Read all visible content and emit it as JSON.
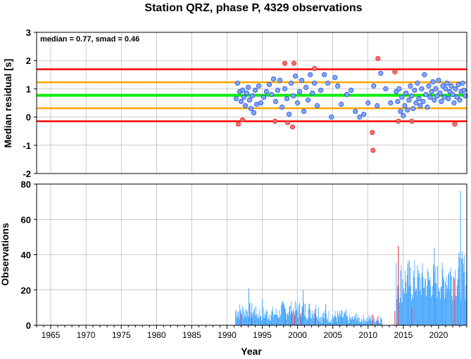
{
  "chart_data": [
    {
      "type": "scatter",
      "title": "Station QRZ, phase P, 4329 observations",
      "annotation": "median = 0.77, smad = 0.46",
      "ylabel": "Median residual [s]",
      "xlim": [
        1963,
        2024
      ],
      "ylim": [
        -2,
        3
      ],
      "yticks": [
        -2,
        -1,
        0,
        1,
        2,
        3
      ],
      "grid": true,
      "reference_lines": [
        {
          "y": 0.77,
          "color": "#00ee00"
        },
        {
          "y": 1.23,
          "color": "#ffa500"
        },
        {
          "y": 0.31,
          "color": "#ffa500"
        },
        {
          "y": 1.69,
          "color": "#ff0000"
        },
        {
          "y": -0.15,
          "color": "#ff0000"
        }
      ],
      "series": [
        {
          "color": "#7fa6ff",
          "points": [
            [
              1991.3,
              0.65
            ],
            [
              1991.5,
              1.2
            ],
            [
              1991.8,
              0.9
            ],
            [
              1992.0,
              0.55
            ],
            [
              1992.2,
              0.95
            ],
            [
              1992.4,
              0.7
            ],
            [
              1992.6,
              0.4
            ],
            [
              1992.8,
              0.85
            ],
            [
              1993.0,
              1.05
            ],
            [
              1993.2,
              0.6
            ],
            [
              1993.4,
              0.3
            ],
            [
              1993.6,
              0.75
            ],
            [
              1993.8,
              0.15
            ],
            [
              1994.0,
              0.95
            ],
            [
              1994.2,
              0.45
            ],
            [
              1994.5,
              1.1
            ],
            [
              1994.8,
              0.5
            ],
            [
              1995.2,
              0.7
            ],
            [
              1995.6,
              0.9
            ],
            [
              1996.0,
              1.15
            ],
            [
              1996.3,
              0.8
            ],
            [
              1996.6,
              1.35
            ],
            [
              1996.9,
              0.55
            ],
            [
              1997.2,
              0.95
            ],
            [
              1997.5,
              1.3
            ],
            [
              1997.8,
              0.35
            ],
            [
              1998.2,
              1.0
            ],
            [
              1998.5,
              0.65
            ],
            [
              1998.8,
              0.1
            ],
            [
              1999.1,
              1.2
            ],
            [
              1999.4,
              0.75
            ],
            [
              1999.7,
              1.45
            ],
            [
              2000.0,
              0.5
            ],
            [
              2000.3,
              0.9
            ],
            [
              2000.6,
              1.3
            ],
            [
              2000.9,
              0.2
            ],
            [
              2001.2,
              1.05
            ],
            [
              2001.5,
              0.6
            ],
            [
              2001.8,
              1.5
            ],
            [
              2002.1,
              0.85
            ],
            [
              2002.4,
              1.2
            ],
            [
              2002.8,
              0.4
            ],
            [
              2003.3,
              0.95
            ],
            [
              2003.8,
              1.5
            ],
            [
              2004.3,
              1.2
            ],
            [
              2004.8,
              0.0
            ],
            [
              2005.3,
              1.4
            ],
            [
              2005.7,
              1.1
            ],
            [
              2006.2,
              0.45
            ],
            [
              2007.0,
              0.8
            ],
            [
              2007.6,
              0.95
            ],
            [
              2008.2,
              0.2
            ],
            [
              2008.8,
              0.0
            ],
            [
              2009.4,
              0.1
            ],
            [
              2010.0,
              0.5
            ],
            [
              2010.8,
              1.1
            ],
            [
              2011.3,
              0.4
            ],
            [
              2011.8,
              1.55
            ],
            [
              2012.5,
              1.0
            ],
            [
              2013.2,
              0.5
            ],
            [
              2014.0,
              0.9
            ],
            [
              2014.2,
              0.55
            ],
            [
              2014.4,
              1.0
            ],
            [
              2014.6,
              0.2
            ],
            [
              2014.8,
              0.7
            ],
            [
              2015.0,
              0.05
            ],
            [
              2015.2,
              0.4
            ],
            [
              2015.4,
              0.85
            ],
            [
              2015.6,
              0.25
            ],
            [
              2015.8,
              0.6
            ],
            [
              2016.0,
              1.1
            ],
            [
              2016.2,
              0.75
            ],
            [
              2016.4,
              0.3
            ],
            [
              2016.6,
              0.95
            ],
            [
              2016.8,
              0.5
            ],
            [
              2017.0,
              1.2
            ],
            [
              2017.2,
              0.65
            ],
            [
              2017.4,
              0.4
            ],
            [
              2017.6,
              1.0
            ],
            [
              2017.8,
              0.55
            ],
            [
              2018.0,
              1.5
            ],
            [
              2018.2,
              0.8
            ],
            [
              2018.4,
              0.35
            ],
            [
              2018.6,
              1.1
            ],
            [
              2018.8,
              0.7
            ],
            [
              2019.0,
              0.9
            ],
            [
              2019.2,
              1.25
            ],
            [
              2019.4,
              0.6
            ],
            [
              2019.6,
              1.0
            ],
            [
              2019.8,
              0.75
            ],
            [
              2020.0,
              1.3
            ],
            [
              2020.2,
              0.85
            ],
            [
              2020.4,
              0.55
            ],
            [
              2020.6,
              1.1
            ],
            [
              2020.8,
              0.7
            ],
            [
              2021.0,
              1.0
            ],
            [
              2021.2,
              1.2
            ],
            [
              2021.4,
              0.65
            ],
            [
              2021.6,
              0.9
            ],
            [
              2021.8,
              1.1
            ],
            [
              2022.0,
              0.8
            ],
            [
              2022.2,
              0.5
            ],
            [
              2022.4,
              1.0
            ],
            [
              2022.6,
              0.7
            ],
            [
              2022.8,
              1.15
            ],
            [
              2023.0,
              0.6
            ],
            [
              2023.2,
              0.9
            ],
            [
              2023.4,
              1.2
            ],
            [
              2023.6,
              0.95
            ],
            [
              2023.8,
              0.75
            ]
          ]
        },
        {
          "color": "#ff6b6b",
          "points": [
            [
              1991.6,
              -0.25
            ],
            [
              1992.2,
              -0.1
            ],
            [
              1996.8,
              -0.15
            ],
            [
              1998.2,
              1.9
            ],
            [
              1998.6,
              -0.2
            ],
            [
              1999.3,
              -0.35
            ],
            [
              1999.5,
              1.9
            ],
            [
              2002.4,
              1.72
            ],
            [
              2010.6,
              -0.55
            ],
            [
              2010.7,
              -1.18
            ],
            [
              2011.4,
              2.07
            ],
            [
              2013.8,
              1.6
            ],
            [
              2014.3,
              -0.15
            ],
            [
              2016.2,
              -0.15
            ],
            [
              2022.3,
              -0.25
            ]
          ]
        }
      ]
    },
    {
      "type": "bar",
      "xlabel": "Year",
      "ylabel": "Observations",
      "xlim": [
        1963,
        2024
      ],
      "ylim": [
        0,
        80
      ],
      "yticks": [
        0,
        20,
        40,
        60,
        80
      ],
      "xticks": [
        1965,
        1970,
        1975,
        1980,
        1985,
        1990,
        1995,
        2000,
        2005,
        2010,
        2015,
        2020
      ],
      "grid": true,
      "segments": [
        {
          "start": 1991.2,
          "end": 1994.0,
          "min": 3,
          "max": 13,
          "peak": [
            1993.1,
            21
          ]
        },
        {
          "start": 1994.0,
          "end": 1997.5,
          "min": 2,
          "max": 11,
          "peak": [
            1995.0,
            15
          ]
        },
        {
          "start": 1997.5,
          "end": 2003.0,
          "min": 3,
          "max": 14,
          "peak": [
            2000.8,
            20
          ]
        },
        {
          "start": 2003.0,
          "end": 2007.0,
          "min": 1,
          "max": 9,
          "peak": [
            2004.0,
            12
          ]
        },
        {
          "start": 2007.0,
          "end": 2012.0,
          "min": 1,
          "max": 6,
          "peak": [
            2008.3,
            7
          ]
        },
        {
          "start": 2014.0,
          "end": 2017.0,
          "min": 12,
          "max": 38,
          "peak": [
            2014.3,
            45
          ]
        },
        {
          "start": 2017.0,
          "end": 2021.0,
          "min": 14,
          "max": 36,
          "peak": [
            2019.4,
            44
          ]
        },
        {
          "start": 2021.0,
          "end": 2024.0,
          "min": 14,
          "max": 42,
          "peak": [
            2023.1,
            76
          ]
        }
      ],
      "red_bars": [
        [
          1992.0,
          7
        ],
        [
          1993.5,
          6
        ],
        [
          1998.3,
          7
        ],
        [
          1999.2,
          8
        ],
        [
          1999.6,
          6
        ],
        [
          2000.5,
          7
        ],
        [
          2002.5,
          9
        ],
        [
          2010.6,
          6
        ],
        [
          2011.4,
          5
        ],
        [
          2013.8,
          8
        ],
        [
          2014.3,
          45
        ],
        [
          2016.2,
          10
        ],
        [
          2022.3,
          26
        ]
      ],
      "series": [
        {
          "color": "#3ba0ff"
        },
        {
          "color": "#ff3333"
        }
      ]
    }
  ]
}
